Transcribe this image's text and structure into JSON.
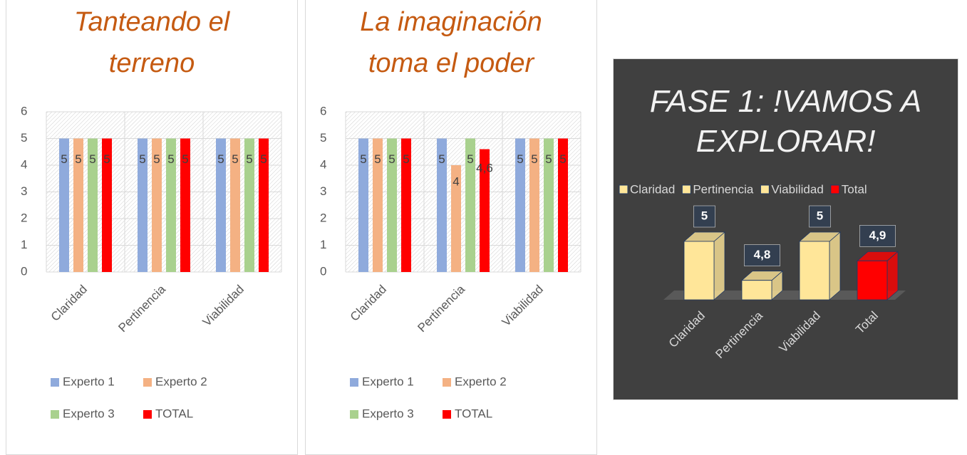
{
  "chart_data": [
    {
      "type": "bar",
      "title": "Tanteando el terreno",
      "categories": [
        "Claridad",
        "Pertinencia",
        "Viabilidad"
      ],
      "series": [
        {
          "name": "Experto 1",
          "color": "#8faadc",
          "values": [
            5,
            5,
            5
          ]
        },
        {
          "name": "Experto 2",
          "color": "#f4b183",
          "values": [
            5,
            5,
            5
          ]
        },
        {
          "name": "Experto  3",
          "color": "#a9d18e",
          "values": [
            5,
            5,
            5
          ]
        },
        {
          "name": "TOTAL",
          "color": "#ff0000",
          "values": [
            5,
            5,
            5
          ]
        }
      ],
      "ylim": [
        0,
        6
      ],
      "yticks": [
        0,
        1,
        2,
        3,
        4,
        5,
        6
      ],
      "grid": true,
      "legend": "bottom"
    },
    {
      "type": "bar",
      "title": "La imaginación toma el poder",
      "categories": [
        "Claridad",
        "Pertinencia",
        "Viabilidad"
      ],
      "series": [
        {
          "name": "Experto 1",
          "color": "#8faadc",
          "values": [
            5,
            5,
            5
          ]
        },
        {
          "name": "Experto 2",
          "color": "#f4b183",
          "values": [
            5,
            4,
            5
          ]
        },
        {
          "name": "Experto  3",
          "color": "#a9d18e",
          "values": [
            5,
            5,
            5
          ]
        },
        {
          "name": "TOTAL",
          "color": "#ff0000",
          "values": [
            5,
            4.6,
            5
          ],
          "value_labels": [
            "5",
            "4,6",
            "5"
          ]
        }
      ],
      "ylim": [
        0,
        6
      ],
      "yticks": [
        0,
        1,
        2,
        3,
        4,
        5,
        6
      ],
      "grid": true,
      "legend": "bottom"
    },
    {
      "type": "bar3d",
      "title": "FASE 1: !VAMOS A EXPLORAR!",
      "categories": [
        "Claridad",
        "Pertinencia",
        "Viabilidad",
        "Total"
      ],
      "values": [
        5,
        4.8,
        5,
        4.9
      ],
      "value_labels": [
        "5",
        "4,8",
        "5",
        "4,9"
      ],
      "colors": [
        "#ffe699",
        "#ffe699",
        "#ffe699",
        "#ff0000"
      ],
      "ylim": [
        4.7,
        5
      ],
      "legend": "top"
    }
  ]
}
